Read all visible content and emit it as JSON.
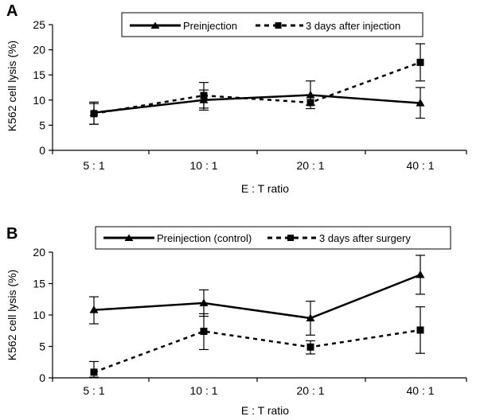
{
  "chart_data": [
    {
      "panel": "A",
      "type": "line",
      "categories": [
        "5 : 1",
        "10 : 1",
        "20 : 1",
        "40 : 1"
      ],
      "xlabel": "E : T ratio",
      "ylabel": "K562 cell lysis (%)",
      "ylim": [
        0,
        25
      ],
      "yticks": [
        0,
        5,
        10,
        15,
        20,
        25
      ],
      "grid": false,
      "legend": "top",
      "series": [
        {
          "name": "Preinjection",
          "style": "solid",
          "marker": "triangle",
          "values": [
            7.5,
            10,
            11,
            9.4
          ],
          "err_low": [
            5.2,
            8.0,
            9.0,
            6.4
          ],
          "err_high": [
            9.6,
            12.0,
            13.8,
            12.5
          ]
        },
        {
          "name": "3 days after injection",
          "style": "dashed",
          "marker": "square",
          "values": [
            7.3,
            10.9,
            9.5,
            17.5
          ],
          "err_low": [
            5.2,
            8.4,
            8.3,
            13.8
          ],
          "err_high": [
            9.3,
            13.5,
            10.9,
            21.2
          ]
        }
      ]
    },
    {
      "panel": "B",
      "type": "line",
      "categories": [
        "5 : 1",
        "10 : 1",
        "20 : 1",
        "40 : 1"
      ],
      "xlabel": "E : T ratio",
      "ylabel": "K562 cell lysis (%)",
      "ylim": [
        0,
        20
      ],
      "yticks": [
        0,
        5,
        10,
        15,
        20
      ],
      "grid": false,
      "legend": "top",
      "series": [
        {
          "name": "Preinjection (control)",
          "style": "solid",
          "marker": "triangle",
          "values": [
            10.8,
            11.9,
            9.5,
            16.4
          ],
          "err_low": [
            8.6,
            9.8,
            6.8,
            13.3
          ],
          "err_high": [
            12.9,
            14.0,
            12.2,
            19.5
          ]
        },
        {
          "name": "3 days after surgery",
          "style": "dashed",
          "marker": "square",
          "values": [
            0.9,
            7.4,
            4.9,
            7.6
          ],
          "err_low": [
            0.1,
            4.5,
            3.8,
            3.9
          ],
          "err_high": [
            2.6,
            10.2,
            5.9,
            11.3
          ]
        }
      ]
    }
  ]
}
